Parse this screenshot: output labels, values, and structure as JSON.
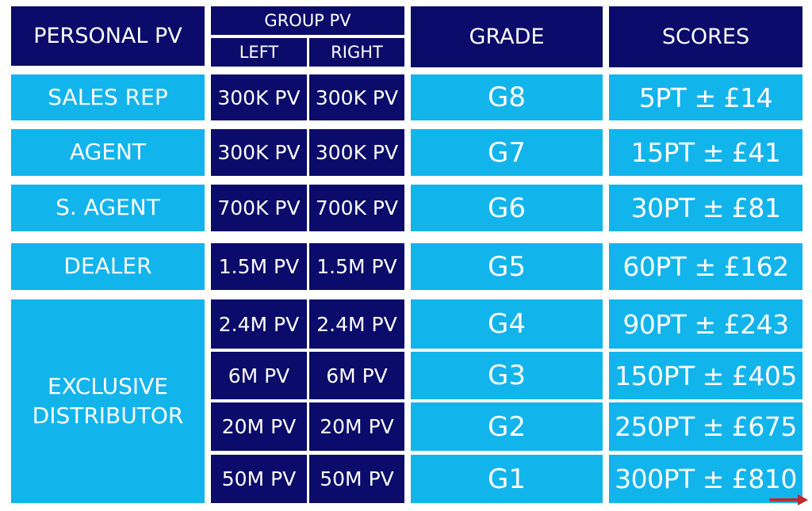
{
  "header": {
    "personal_pv": "PERSONAL PV",
    "group_pv": "GROUP PV",
    "left": "LEFT",
    "right": "RIGHT",
    "grade": "GRADE",
    "scores": "SCORES"
  },
  "rows": [
    {
      "role": "SALES REP",
      "left": "300K PV",
      "right": "300K PV",
      "grade": "G8",
      "score": "5PT ± £14"
    },
    {
      "role": "AGENT",
      "left": "300K PV",
      "right": "300K PV",
      "grade": "G7",
      "score": "15PT ± £41"
    },
    {
      "role": "S. AGENT",
      "left": "700K PV",
      "right": "700K PV",
      "grade": "G6",
      "score": "30PT ± £81"
    },
    {
      "role": "DEALER",
      "left": "1.5M PV",
      "right": "1.5M PV",
      "grade": "G5",
      "score": "60PT ± £162"
    },
    {
      "role": "EXCLUSIVE DISTRIBUTOR",
      "left": "2.4M PV",
      "right": "2.4M PV",
      "grade": "G4",
      "score": "90PT ± £243"
    },
    {
      "role": "",
      "left": "6M PV",
      "right": "6M PV",
      "grade": "G3",
      "score": "150PT ± £405"
    },
    {
      "role": "",
      "left": "20M PV",
      "right": "20M PV",
      "grade": "G2",
      "score": "250PT ± £675"
    },
    {
      "role": "",
      "left": "50M PV",
      "right": "50M PV",
      "grade": "G1",
      "score": "300PT ± £810"
    }
  ],
  "colors": {
    "navy": "#0b0b6b",
    "cyan": "#12b4ec",
    "arrow": "#c0282d"
  },
  "icons": {
    "next": "arrow-right-icon"
  }
}
